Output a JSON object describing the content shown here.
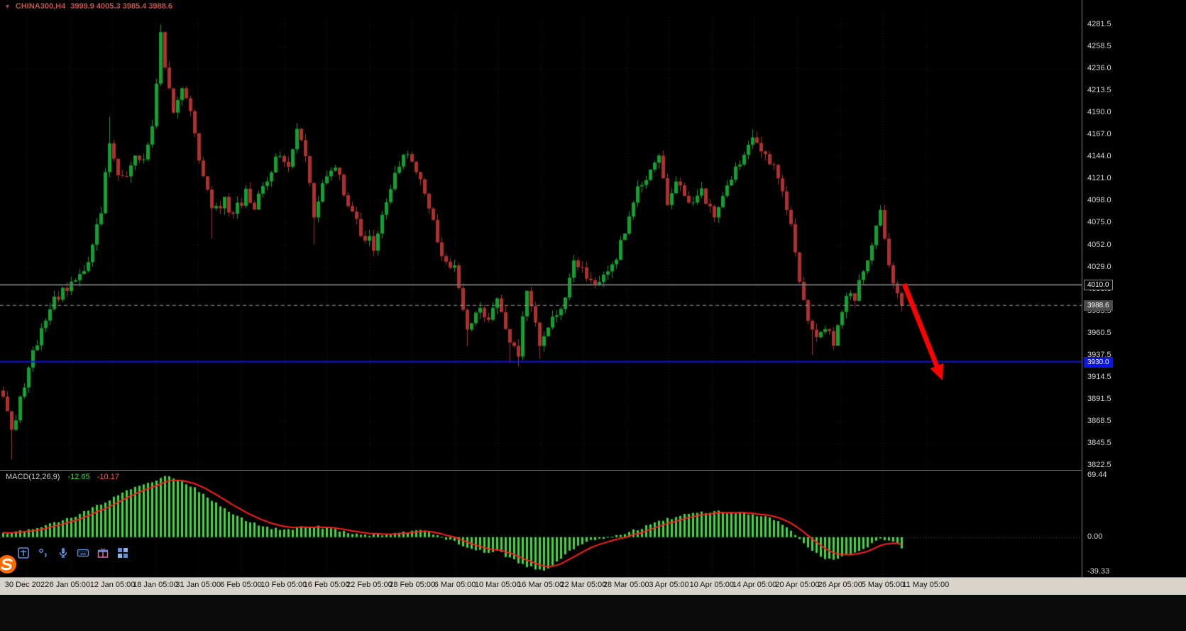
{
  "header": {
    "symbol": "CHINA300,H4",
    "ohlc": "3999.9 4005.3 3985.4 3988.6",
    "dropdown_marker": "▼"
  },
  "colors": {
    "background": "#000000",
    "bull": "#12a12e",
    "bear": "#b03030",
    "macd_histogram": "#3bdc3b",
    "macd_signal": "#ff1e1e",
    "support_line": "#0b16e6",
    "resistance_line": "#707070",
    "bid_line": "#9a9a9a",
    "annotation_arrow": "#ff0000",
    "time_axis_bg": "#d8d4cb",
    "scale_text": "#d6d6d6"
  },
  "chart_data": {
    "type": "candlestick",
    "title": "CHINA300,H4",
    "symbol": "CHINA300",
    "timeframe": "H4",
    "current_bar": {
      "open": 3999.9,
      "high": 4005.3,
      "low": 3985.4,
      "close": 3988.6
    },
    "candles_n": 212,
    "price_path": [
      [
        0,
        3895
      ],
      [
        2,
        3858
      ],
      [
        4,
        3888
      ],
      [
        7,
        3938
      ],
      [
        10,
        3978
      ],
      [
        13,
        4000
      ],
      [
        17,
        4018
      ],
      [
        20,
        4030
      ],
      [
        23,
        4090
      ],
      [
        25,
        4155
      ],
      [
        27,
        4130
      ],
      [
        29,
        4118
      ],
      [
        31,
        4150
      ],
      [
        33,
        4135
      ],
      [
        35,
        4175
      ],
      [
        37,
        4268
      ],
      [
        38,
        4240
      ],
      [
        40,
        4185
      ],
      [
        42,
        4215
      ],
      [
        44,
        4190
      ],
      [
        46,
        4140
      ],
      [
        49,
        4088
      ],
      [
        52,
        4098
      ],
      [
        54,
        4082
      ],
      [
        57,
        4105
      ],
      [
        59,
        4088
      ],
      [
        62,
        4122
      ],
      [
        65,
        4150
      ],
      [
        67,
        4136
      ],
      [
        69,
        4168
      ],
      [
        71,
        4148
      ],
      [
        73,
        4082
      ],
      [
        76,
        4128
      ],
      [
        78,
        4138
      ],
      [
        81,
        4092
      ],
      [
        84,
        4066
      ],
      [
        87,
        4050
      ],
      [
        90,
        4092
      ],
      [
        92,
        4132
      ],
      [
        95,
        4144
      ],
      [
        97,
        4128
      ],
      [
        100,
        4092
      ],
      [
        103,
        4038
      ],
      [
        106,
        4026
      ],
      [
        109,
        3966
      ],
      [
        112,
        3986
      ],
      [
        114,
        3972
      ],
      [
        116,
        3996
      ],
      [
        119,
        3948
      ],
      [
        121,
        3940
      ],
      [
        123,
        4006
      ],
      [
        126,
        3946
      ],
      [
        129,
        3976
      ],
      [
        132,
        3998
      ],
      [
        134,
        4036
      ],
      [
        137,
        4016
      ],
      [
        140,
        4008
      ],
      [
        143,
        4030
      ],
      [
        146,
        4062
      ],
      [
        149,
        4112
      ],
      [
        152,
        4128
      ],
      [
        154,
        4140
      ],
      [
        156,
        4096
      ],
      [
        158,
        4118
      ],
      [
        161,
        4090
      ],
      [
        164,
        4106
      ],
      [
        167,
        4076
      ],
      [
        170,
        4108
      ],
      [
        173,
        4138
      ],
      [
        176,
        4162
      ],
      [
        178,
        4150
      ],
      [
        181,
        4130
      ],
      [
        184,
        4092
      ],
      [
        186,
        4046
      ],
      [
        188,
        3992
      ],
      [
        190,
        3958
      ],
      [
        193,
        3962
      ],
      [
        195,
        3952
      ],
      [
        198,
        4004
      ],
      [
        200,
        3999
      ],
      [
        203,
        4034
      ],
      [
        206,
        4085
      ],
      [
        207,
        4060
      ],
      [
        208,
        4030
      ],
      [
        209,
        4008
      ],
      [
        210,
        4000
      ],
      [
        211,
        3988.6
      ]
    ],
    "wick_overrides": [
      {
        "i": 2,
        "low": 3828
      },
      {
        "i": 25,
        "high": 4185
      },
      {
        "i": 37,
        "high": 4281
      },
      {
        "i": 49,
        "low": 4058
      },
      {
        "i": 69,
        "high": 4178
      },
      {
        "i": 73,
        "low": 4052
      },
      {
        "i": 87,
        "low": 4040
      },
      {
        "i": 109,
        "low": 3946
      },
      {
        "i": 119,
        "low": 3929
      },
      {
        "i": 121,
        "low": 3925
      },
      {
        "i": 126,
        "low": 3933
      },
      {
        "i": 176,
        "high": 4172
      },
      {
        "i": 190,
        "low": 3937
      },
      {
        "i": 195,
        "low": 3944
      },
      {
        "i": 206,
        "high": 4093
      }
    ],
    "y_axis": {
      "top": 4281.5,
      "bottom": 3822.5,
      "ticks": [
        "4281.5",
        "4258.5",
        "4236.0",
        "4213.5",
        "4190.0",
        "4167.0",
        "4144.0",
        "4121.0",
        "4098.0",
        "4075.0",
        "4052.0",
        "4029.0",
        "4006.0",
        "3983.5",
        "3960.5",
        "3937.5",
        "3914.5",
        "3891.5",
        "3868.5",
        "3845.5",
        "3822.5"
      ]
    },
    "x_axis": {
      "labels": [
        "30 Dec 2022",
        "6 Jan 05:00",
        "12 Jan 05:00",
        "18 Jan 05:00",
        "31 Jan 05:00",
        "6 Feb 05:00",
        "10 Feb 05:00",
        "16 Feb 05:00",
        "22 Feb 05:00",
        "28 Feb 05:00",
        "6 Mar 05:00",
        "10 Mar 05:00",
        "16 Mar 05:00",
        "22 Mar 05:00",
        "28 Mar 05:00",
        "3 Apr 05:00",
        "10 Apr 05:00",
        "14 Apr 05:00",
        "20 Apr 05:00",
        "26 Apr 05:00",
        "5 May 05:00",
        "11 May 05:00"
      ]
    },
    "levels": [
      {
        "label": "4010.0",
        "price": 4010.0,
        "line_color": "#707070",
        "label_bg": "#000000",
        "label_border": "#888888",
        "style": "solid",
        "width": 2,
        "name": "resistance-line-label",
        "interactable": true
      },
      {
        "label": "3988.6",
        "price": 3988.6,
        "line_color": "#9a9a9a",
        "label_bg": "#4b4b4b",
        "label_border": "#4b4b4b",
        "style": "dash",
        "width": 1,
        "name": "bid-price-label",
        "interactable": false
      },
      {
        "label": "3930.0",
        "price": 3930.0,
        "line_color": "#0b16e6",
        "label_bg": "#0b16e6",
        "label_border": "#0b16e6",
        "style": "solid",
        "width": 2,
        "name": "support-line-label",
        "interactable": true
      }
    ],
    "annotation_arrow": {
      "type": "arrow-down-right",
      "color": "#ff0000",
      "from_price": 4006,
      "to_price": 3921
    },
    "indicator": {
      "type": "MACD",
      "label": "MACD(12,26,9)",
      "value_main": "-12.65",
      "value_signal": "-10.17",
      "scale_ticks": [
        {
          "t": "69.44",
          "v": 69.44
        },
        {
          "t": "0.00",
          "v": 0
        },
        {
          "t": "-39.33",
          "v": -39.33
        }
      ],
      "ylim": [
        -45,
        75
      ],
      "histogram_path": [
        [
          0,
          4
        ],
        [
          6,
          9
        ],
        [
          12,
          16
        ],
        [
          18,
          26
        ],
        [
          24,
          40
        ],
        [
          28,
          50
        ],
        [
          32,
          58
        ],
        [
          36,
          65
        ],
        [
          39,
          69
        ],
        [
          42,
          64
        ],
        [
          46,
          52
        ],
        [
          50,
          38
        ],
        [
          54,
          27
        ],
        [
          58,
          17
        ],
        [
          62,
          11
        ],
        [
          66,
          8
        ],
        [
          70,
          11
        ],
        [
          74,
          12
        ],
        [
          78,
          8
        ],
        [
          82,
          4
        ],
        [
          86,
          2
        ],
        [
          90,
          3
        ],
        [
          94,
          6
        ],
        [
          98,
          7
        ],
        [
          101,
          4
        ],
        [
          104,
          -2
        ],
        [
          107,
          -7
        ],
        [
          110,
          -13
        ],
        [
          113,
          -17
        ],
        [
          116,
          -15
        ],
        [
          119,
          -24
        ],
        [
          122,
          -31
        ],
        [
          125,
          -36
        ],
        [
          127,
          -39
        ],
        [
          129,
          -33
        ],
        [
          131,
          -24
        ],
        [
          134,
          -13
        ],
        [
          137,
          -4
        ],
        [
          140,
          -2
        ],
        [
          143,
          1
        ],
        [
          146,
          4
        ],
        [
          149,
          9
        ],
        [
          152,
          14
        ],
        [
          155,
          19
        ],
        [
          158,
          23
        ],
        [
          161,
          26
        ],
        [
          164,
          28
        ],
        [
          167,
          29
        ],
        [
          170,
          28
        ],
        [
          173,
          27
        ],
        [
          176,
          26
        ],
        [
          179,
          23
        ],
        [
          182,
          17
        ],
        [
          184,
          10
        ],
        [
          186,
          2
        ],
        [
          188,
          -8
        ],
        [
          190,
          -16
        ],
        [
          192,
          -22
        ],
        [
          194,
          -25
        ],
        [
          196,
          -24
        ],
        [
          198,
          -21
        ],
        [
          200,
          -17
        ],
        [
          202,
          -13
        ],
        [
          204,
          -8
        ],
        [
          206,
          -3
        ],
        [
          208,
          -4
        ],
        [
          210,
          -8
        ],
        [
          211,
          -12.65
        ]
      ],
      "signal": "ema9_of_histogram"
    }
  },
  "ime_toolbar": {
    "icons": [
      "ime-mode",
      "punctuation",
      "microphone",
      "keyboard",
      "gift",
      "apps-grid"
    ],
    "logo": "sogou"
  }
}
